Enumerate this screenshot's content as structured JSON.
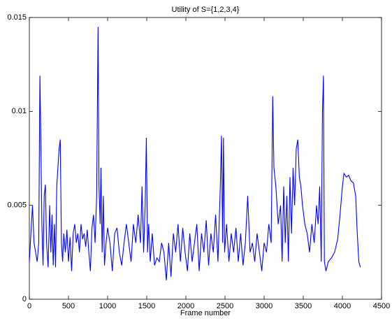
{
  "chart_data": {
    "type": "line",
    "title": "Utility of S={1,2,3,4}",
    "x_label": "Frame number",
    "color": "#0000ff",
    "xlim": [
      0,
      4500
    ],
    "xticks": [
      0,
      500,
      1000,
      1500,
      2000,
      2500,
      3000,
      3500,
      4000,
      4500
    ],
    "ylim": [
      0,
      0.015
    ],
    "yticks": [
      0,
      0.005,
      0.01,
      0.015
    ],
    "x": [
      0,
      20,
      40,
      60,
      80,
      100,
      120,
      135,
      145,
      160,
      175,
      190,
      205,
      220,
      240,
      260,
      275,
      290,
      305,
      320,
      335,
      350,
      365,
      380,
      395,
      410,
      425,
      440,
      460,
      480,
      500,
      520,
      540,
      560,
      580,
      600,
      620,
      640,
      660,
      680,
      700,
      720,
      740,
      760,
      780,
      800,
      820,
      840,
      860,
      878,
      890,
      905,
      915,
      930,
      945,
      960,
      980,
      1000,
      1030,
      1060,
      1090,
      1120,
      1150,
      1180,
      1210,
      1240,
      1270,
      1300,
      1330,
      1360,
      1390,
      1420,
      1440,
      1460,
      1480,
      1495,
      1510,
      1525,
      1545,
      1570,
      1600,
      1630,
      1660,
      1690,
      1720,
      1750,
      1780,
      1810,
      1840,
      1870,
      1900,
      1930,
      1960,
      1990,
      2020,
      2050,
      2080,
      2110,
      2140,
      2170,
      2200,
      2230,
      2260,
      2290,
      2320,
      2350,
      2380,
      2410,
      2440,
      2455,
      2470,
      2480,
      2495,
      2520,
      2550,
      2580,
      2610,
      2640,
      2670,
      2700,
      2730,
      2760,
      2790,
      2820,
      2850,
      2880,
      2910,
      2940,
      2970,
      3000,
      3030,
      3060,
      3090,
      3110,
      3125,
      3150,
      3180,
      3210,
      3230,
      3250,
      3270,
      3290,
      3310,
      3330,
      3350,
      3370,
      3390,
      3410,
      3430,
      3450,
      3470,
      3490,
      3520,
      3550,
      3580,
      3610,
      3640,
      3670,
      3690,
      3710,
      3730,
      3745,
      3758,
      3770,
      3790,
      3820,
      3860,
      3900,
      3940,
      3970,
      4000,
      4020,
      4050,
      4080,
      4110,
      4140,
      4170,
      4190,
      4210,
      4230
    ],
    "values": [
      0.002,
      0.0035,
      0.005,
      0.003,
      0.0025,
      0.002,
      0.003,
      0.0119,
      0.009,
      0.004,
      0.0018,
      0.0055,
      0.0061,
      0.003,
      0.0017,
      0.005,
      0.0025,
      0.0045,
      0.0018,
      0.004,
      0.0017,
      0.006,
      0.007,
      0.008,
      0.0085,
      0.003,
      0.002,
      0.0035,
      0.0025,
      0.0037,
      0.002,
      0.0033,
      0.0015,
      0.0035,
      0.004,
      0.003,
      0.0035,
      0.0025,
      0.004,
      0.0032,
      0.0035,
      0.0028,
      0.0037,
      0.0025,
      0.0015,
      0.0038,
      0.0045,
      0.003,
      0.0055,
      0.0145,
      0.006,
      0.004,
      0.007,
      0.0025,
      0.0055,
      0.0018,
      0.003,
      0.0038,
      0.003,
      0.0015,
      0.0035,
      0.0038,
      0.0025,
      0.0018,
      0.003,
      0.004,
      0.003,
      0.002,
      0.004,
      0.003,
      0.0045,
      0.003,
      0.006,
      0.0025,
      0.005,
      0.0086,
      0.0025,
      0.004,
      0.002,
      0.0035,
      0.0018,
      0.0022,
      0.002,
      0.003,
      0.0025,
      0.001,
      0.003,
      0.0012,
      0.0035,
      0.0025,
      0.004,
      0.002,
      0.0038,
      0.0025,
      0.0015,
      0.0035,
      0.002,
      0.003,
      0.004,
      0.0015,
      0.0035,
      0.0025,
      0.0042,
      0.0018,
      0.0035,
      0.0025,
      0.0045,
      0.002,
      0.006,
      0.0087,
      0.003,
      0.0086,
      0.0025,
      0.004,
      0.002,
      0.0035,
      0.0025,
      0.0038,
      0.002,
      0.0035,
      0.0018,
      0.003,
      0.0055,
      0.0025,
      0.003,
      0.002,
      0.0035,
      0.0025,
      0.0015,
      0.003,
      0.0025,
      0.004,
      0.003,
      0.0108,
      0.007,
      0.006,
      0.004,
      0.005,
      0.002,
      0.006,
      0.003,
      0.0055,
      0.002,
      0.0065,
      0.0035,
      0.007,
      0.005,
      0.008,
      0.0085,
      0.0065,
      0.006,
      0.005,
      0.004,
      0.0035,
      0.0025,
      0.004,
      0.003,
      0.005,
      0.004,
      0.006,
      0.002,
      0.0099,
      0.0119,
      0.002,
      0.0015,
      0.002,
      0.0022,
      0.0025,
      0.0032,
      0.0045,
      0.006,
      0.0067,
      0.0065,
      0.0066,
      0.0063,
      0.0062,
      0.0055,
      0.0035,
      0.002,
      0.0017
    ]
  }
}
